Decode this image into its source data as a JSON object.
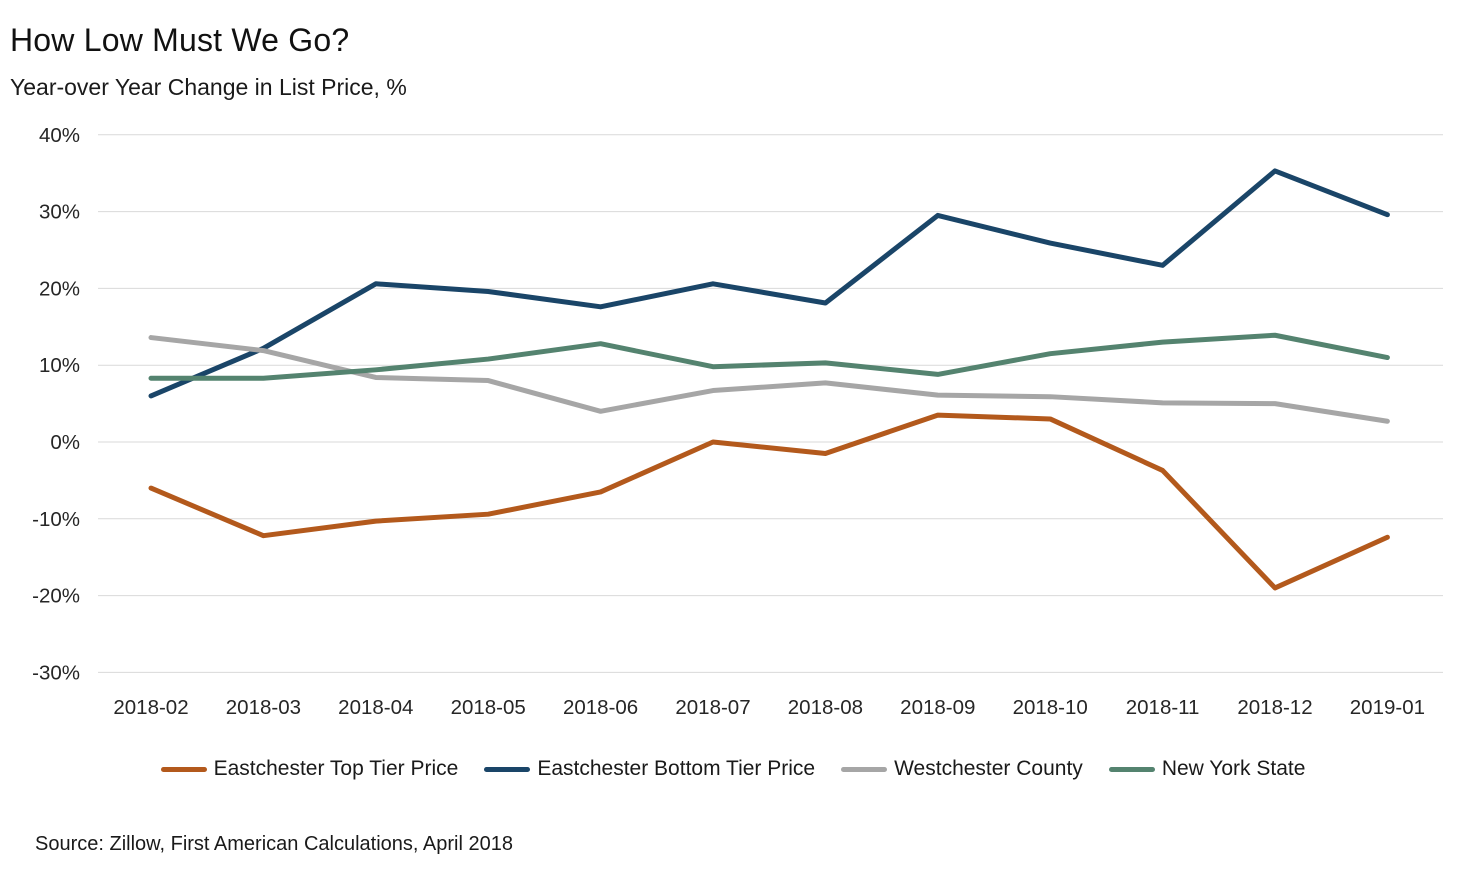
{
  "header": {
    "title": "How Low Must We Go?",
    "subtitle": "Year-over Year Change in List Price, %"
  },
  "footer": {
    "source": "Source: Zillow, First American Calculations, April 2018"
  },
  "colors": {
    "gridline": "#d9d9d9",
    "text": "#1a1a1a"
  },
  "chart_data": {
    "type": "line",
    "title": "How Low Must We Go?",
    "subtitle": "Year-over Year Change in List Price, %",
    "x": [
      "2018-02",
      "2018-03",
      "2018-04",
      "2018-05",
      "2018-06",
      "2018-07",
      "2018-08",
      "2018-09",
      "2018-10",
      "2018-11",
      "2018-12",
      "2019-01"
    ],
    "series": [
      {
        "name": "Eastchester Top Tier Price",
        "color": "#B3591C",
        "values": [
          -6.0,
          -12.2,
          -10.3,
          -9.4,
          -6.5,
          0.0,
          -1.5,
          3.5,
          3.0,
          -3.7,
          -19.0,
          -12.4
        ]
      },
      {
        "name": "Eastchester Bottom Tier Price",
        "color": "#1A4568",
        "values": [
          6.0,
          12.2,
          20.6,
          19.6,
          17.6,
          20.6,
          18.1,
          29.5,
          25.9,
          23.0,
          35.3,
          29.6
        ]
      },
      {
        "name": "Westchester County",
        "color": "#A6A6A6",
        "values": [
          13.6,
          11.9,
          8.4,
          8.0,
          4.0,
          6.7,
          7.7,
          6.1,
          5.9,
          5.1,
          5.0,
          2.7
        ]
      },
      {
        "name": "New York State",
        "color": "#54836F",
        "values": [
          8.3,
          8.3,
          9.4,
          10.8,
          12.8,
          9.8,
          10.3,
          8.8,
          11.5,
          13.0,
          13.9,
          11.0
        ]
      }
    ],
    "ylim": [
      -30,
      40
    ],
    "ytick_step": 10,
    "ytick_labels": [
      "-30%",
      "-20%",
      "-10%",
      "0%",
      "10%",
      "20%",
      "30%",
      "40%"
    ],
    "grid": "horizontal-only",
    "legend_position": "bottom"
  }
}
